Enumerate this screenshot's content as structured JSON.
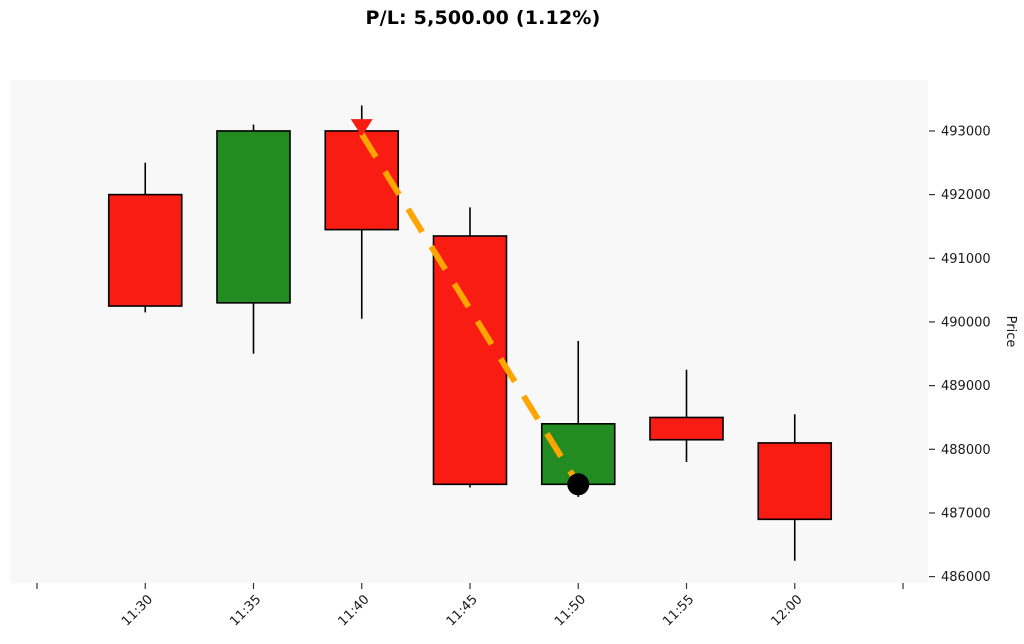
{
  "header": {
    "pl": {
      "value": "5,500.00",
      "percent": "1.12%"
    }
  },
  "chart_data": {
    "type": "candlestick",
    "title": "P/L: 5,500.00 (1.12%)",
    "ylabel": "Price",
    "grid": false,
    "legend": false,
    "x_tick_labels": [
      "",
      "11:30",
      "11:35",
      "11:40",
      "11:45",
      "11:50",
      "11:55",
      "12:00",
      ""
    ],
    "candles": [
      {
        "time": "11:30",
        "open": 492000,
        "high": 492500,
        "low": 490150,
        "close": 490250,
        "direction": "down"
      },
      {
        "time": "11:35",
        "open": 490300,
        "high": 493100,
        "low": 489500,
        "close": 493000,
        "direction": "up"
      },
      {
        "time": "11:40",
        "open": 493000,
        "high": 493400,
        "low": 490050,
        "close": 491450,
        "direction": "down"
      },
      {
        "time": "11:45",
        "open": 491350,
        "high": 491800,
        "low": 487400,
        "close": 487450,
        "direction": "down"
      },
      {
        "time": "11:50",
        "open": 487450,
        "high": 489700,
        "low": 487250,
        "close": 488400,
        "direction": "up"
      },
      {
        "time": "11:55",
        "open": 488500,
        "high": 489250,
        "low": 487800,
        "close": 488150,
        "direction": "down"
      },
      {
        "time": "12:00",
        "open": 488100,
        "high": 488550,
        "low": 486250,
        "close": 486900,
        "direction": "down"
      }
    ],
    "y_ticks": [
      486000,
      487000,
      488000,
      489000,
      490000,
      491000,
      492000,
      493000
    ],
    "ylim": [
      485900,
      493800
    ],
    "trade_line": {
      "entry": {
        "time": "11:40",
        "price": 492950,
        "marker": "sell-triangle-down",
        "color": "#f91c13"
      },
      "exit": {
        "time": "11:50",
        "price": 487450,
        "marker": "buy-dot",
        "color": "#000000"
      },
      "line_color": "#ffa500",
      "line_style": "dashed"
    },
    "colors": {
      "up": "#228b22",
      "down": "#f91c13",
      "wick": "#000000",
      "edge": "#000000",
      "plot_bg": "#f8f8f8",
      "tick_text": "#1a1a1a",
      "tick_mark": "#333333"
    }
  }
}
